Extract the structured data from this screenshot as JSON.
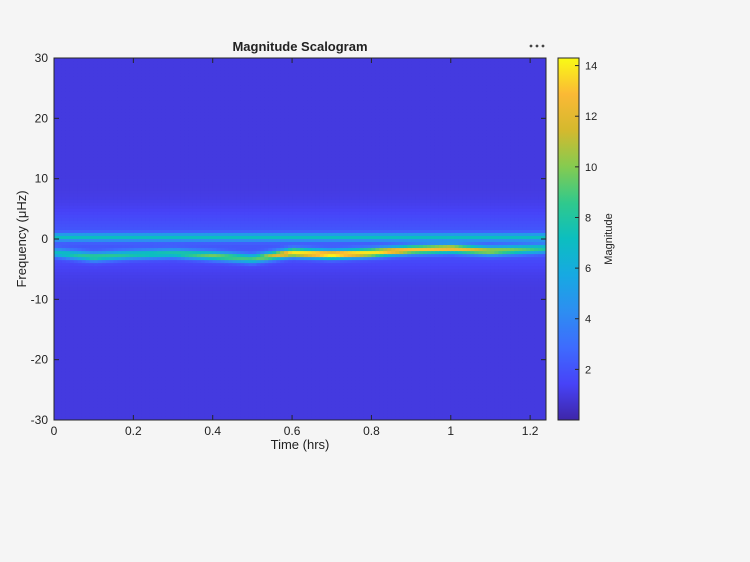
{
  "toolbar": {
    "menu_icon": "ellipsis-icon"
  },
  "chart_data": {
    "type": "heatmap",
    "title": "Magnitude Scalogram",
    "xlabel": "Time (hrs)",
    "ylabel": "Frequency (μHz)",
    "xlim": [
      0,
      1.24
    ],
    "ylim": [
      -30,
      30
    ],
    "xticks": [
      0,
      0.2,
      0.4,
      0.6,
      0.8,
      1,
      1.2
    ],
    "xtick_labels": [
      "0",
      "0.2",
      "0.4",
      "0.6",
      "0.8",
      "1",
      "1.2"
    ],
    "yticks": [
      30,
      20,
      10,
      0,
      -10,
      -20,
      -30
    ],
    "ytick_labels": [
      "30",
      "20",
      "10",
      "0",
      "-10",
      "-20",
      "-30"
    ],
    "colormap": "parula",
    "colorbar": {
      "label": "Magnitude",
      "lim": [
        0,
        14.3
      ],
      "ticks": [
        2,
        4,
        6,
        8,
        10,
        12,
        14
      ],
      "tick_labels": [
        "2",
        "4",
        "6",
        "8",
        "10",
        "12",
        "14"
      ]
    },
    "ridge": {
      "time": [
        0,
        0.1,
        0.2,
        0.3,
        0.4,
        0.5,
        0.6,
        0.7,
        0.8,
        0.9,
        1.0,
        1.1,
        1.24
      ],
      "frequency": [
        -2.3,
        -3.0,
        -2.6,
        -2.4,
        -2.8,
        -3.3,
        -2.3,
        -2.6,
        -2.3,
        -1.8,
        -1.6,
        -2.0,
        -1.6
      ],
      "magnitude": [
        5,
        7,
        6,
        6,
        8,
        7,
        12,
        13,
        12,
        11,
        11,
        9,
        6
      ]
    },
    "secondary_band": {
      "frequency": 0.3,
      "magnitude": 5
    },
    "background_magnitude": 1,
    "grid": false
  }
}
